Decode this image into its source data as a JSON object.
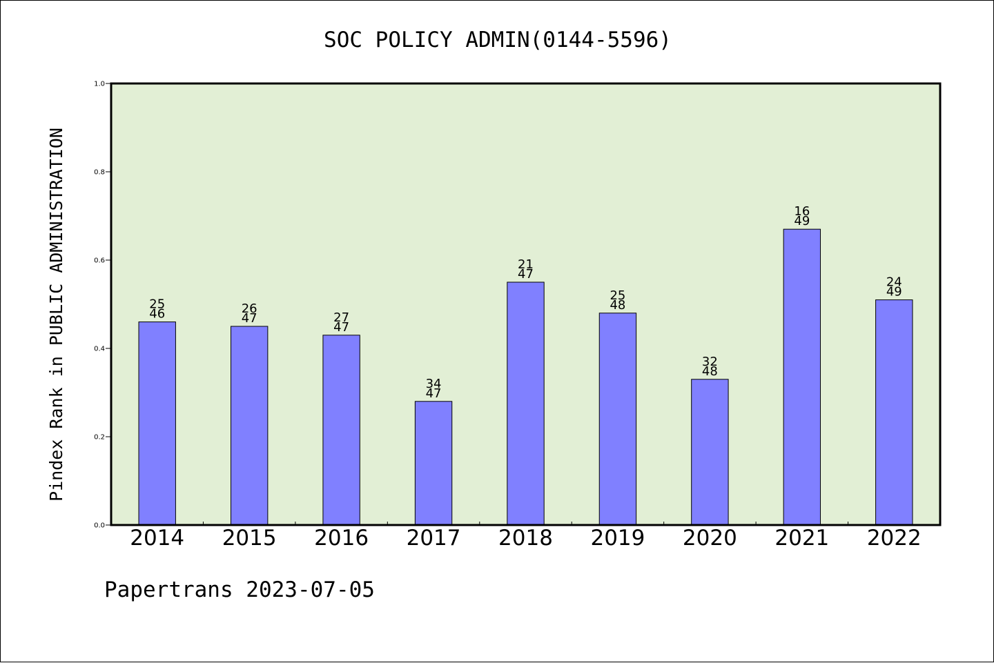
{
  "chart_data": {
    "type": "bar",
    "title": "SOC POLICY ADMIN(0144-5596)",
    "ylabel": "Pindex Rank in PUBLIC ADMINISTRATION",
    "xlabel": "",
    "categories": [
      "2014",
      "2015",
      "2016",
      "2017",
      "2018",
      "2019",
      "2020",
      "2021",
      "2022"
    ],
    "values": [
      0.46,
      0.45,
      0.43,
      0.28,
      0.55,
      0.48,
      0.33,
      0.67,
      0.51
    ],
    "rank_labels": [
      "25",
      "26",
      "27",
      "34",
      "21",
      "25",
      "32",
      "16",
      "24"
    ],
    "total_labels": [
      "46",
      "47",
      "47",
      "47",
      "47",
      "48",
      "48",
      "49",
      "49"
    ],
    "ylim": [
      0,
      1.0
    ],
    "yticks": [
      "0.0",
      "0.2",
      "0.4",
      "0.6",
      "0.8",
      "1.0"
    ],
    "grid": false,
    "colors": {
      "bar": "#8080ff",
      "plot_background": "#e2efd5",
      "frame": "#000000"
    }
  },
  "footer": {
    "text": "Papertrans 2023-07-05"
  }
}
